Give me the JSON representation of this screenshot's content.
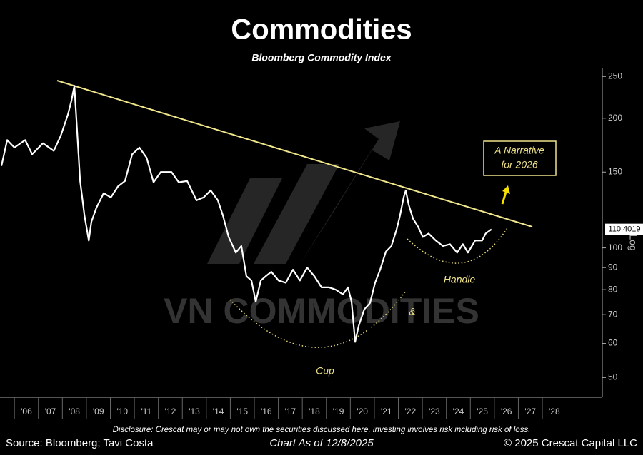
{
  "chart_data": {
    "type": "line",
    "title": "Commodities",
    "subtitle": "Bloomberg Commodity Index",
    "x": [
      2005.46,
      2005.7,
      2006.0,
      2006.45,
      2006.74,
      2007.19,
      2007.64,
      2007.93,
      2008.23,
      2008.38,
      2008.5,
      2008.74,
      2008.92,
      2009.1,
      2009.21,
      2009.42,
      2009.72,
      2010.02,
      2010.32,
      2010.61,
      2010.91,
      2011.21,
      2011.51,
      2011.8,
      2012.1,
      2012.55,
      2012.85,
      2013.2,
      2013.59,
      2013.89,
      2014.18,
      2014.48,
      2014.69,
      2014.93,
      2015.23,
      2015.46,
      2015.67,
      2015.88,
      2016.06,
      2016.27,
      2016.48,
      2016.71,
      2017.01,
      2017.31,
      2017.61,
      2017.9,
      2018.2,
      2018.5,
      2018.8,
      2019.1,
      2019.39,
      2019.69,
      2019.9,
      2020.05,
      2020.2,
      2020.35,
      2020.58,
      2020.82,
      2021.03,
      2021.24,
      2021.48,
      2021.71,
      2021.92,
      2022.07,
      2022.22,
      2022.31,
      2022.43,
      2022.61,
      2022.82,
      2023.02,
      2023.26,
      2023.56,
      2023.86,
      2024.15,
      2024.45,
      2024.69,
      2024.9,
      2025.2,
      2025.49,
      2025.64,
      2025.88
    ],
    "values": [
      155,
      178,
      171,
      178,
      165,
      175,
      168,
      182,
      204,
      220,
      238,
      143,
      119,
      104,
      115,
      124,
      134,
      131,
      139,
      143,
      165,
      171,
      162,
      142,
      150,
      150,
      142,
      143,
      129,
      131,
      136,
      129,
      119,
      106,
      97.5,
      101,
      86,
      84,
      75,
      84,
      86,
      88,
      84,
      83,
      89,
      84,
      90,
      86,
      81,
      81,
      80,
      78,
      81,
      75,
      60.5,
      66,
      72,
      74.5,
      83,
      89,
      98,
      101,
      110,
      119,
      131,
      136,
      126,
      117,
      112,
      106,
      108,
      104,
      101,
      102,
      97.5,
      102,
      97.5,
      104,
      104,
      108,
      110.4019
    ],
    "color": "#ffffff",
    "xlim": [
      2005.4,
      2030.5
    ],
    "ylim": [
      45,
      262
    ],
    "log_scale": true,
    "yticks": [
      50,
      60,
      70,
      80,
      90,
      100,
      150,
      200,
      250
    ],
    "xticks": [
      {
        "value": 2006,
        "label": "'06"
      },
      {
        "value": 2007,
        "label": "'07"
      },
      {
        "value": 2008,
        "label": "'08"
      },
      {
        "value": 2009,
        "label": "'09"
      },
      {
        "value": 2010,
        "label": "'10"
      },
      {
        "value": 2011,
        "label": "'11"
      },
      {
        "value": 2012,
        "label": "'12"
      },
      {
        "value": 2013,
        "label": "'13"
      },
      {
        "value": 2014,
        "label": "'14"
      },
      {
        "value": 2015,
        "label": "'15"
      },
      {
        "value": 2016,
        "label": "'16"
      },
      {
        "value": 2017,
        "label": "'17"
      },
      {
        "value": 2018,
        "label": "'18"
      },
      {
        "value": 2019,
        "label": "'19"
      },
      {
        "value": 2020,
        "label": "'20"
      },
      {
        "value": 2021,
        "label": "'21"
      },
      {
        "value": 2022,
        "label": "'22"
      },
      {
        "value": 2023,
        "label": "'23"
      },
      {
        "value": 2024,
        "label": "'24"
      },
      {
        "value": 2025,
        "label": "'25"
      },
      {
        "value": 2026,
        "label": "'26"
      },
      {
        "value": 2027,
        "label": "'27"
      },
      {
        "value": 2028,
        "label": "'28"
      }
    ],
    "y_axis_label": "Log",
    "annotations": {
      "narrative": [
        "A Narrative",
        "for 2026"
      ],
      "handle": "Handle",
      "and": "&",
      "cup": "Cup"
    },
    "watermark": "VN COMMODITIES"
  },
  "footer": {
    "disclosure": "Disclosure: Crescat may or may not own the securities discussed here, investing involves risk including risk of loss.",
    "source": "Source: Bloomberg; Tavi Costa",
    "date": "Chart As of 12/8/2025",
    "copyright": "© 2025 Crescat Capital LLC"
  }
}
